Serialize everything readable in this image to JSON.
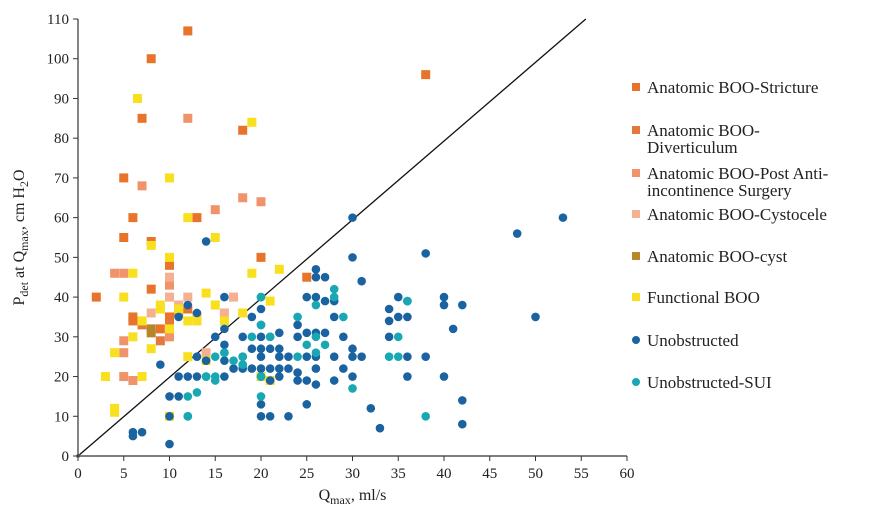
{
  "chart_data": {
    "type": "scatter",
    "title": "",
    "xlim": [
      0,
      60
    ],
    "ylim": [
      0,
      110
    ],
    "xticks": [
      0,
      5,
      10,
      15,
      20,
      25,
      30,
      35,
      40,
      45,
      50,
      55,
      60
    ],
    "yticks": [
      0,
      10,
      20,
      30,
      40,
      50,
      60,
      70,
      80,
      90,
      100,
      110
    ],
    "xlabel": {
      "main": "Q",
      "sub": "max",
      "rest": ", ml/s"
    },
    "ylabel": {
      "p": "P",
      "p_sub": "det",
      "mid": " at Q",
      "q_sub": "max",
      "mid2": ", cm H",
      "h2_sub": "2",
      "end": "O"
    },
    "grid": false,
    "legend_position": "right",
    "reference_line": {
      "x": [
        0,
        55.5
      ],
      "y": [
        0,
        110
      ]
    },
    "series": [
      {
        "name": [
          "Anatomic BOO-Stricture"
        ],
        "marker": "square",
        "color": "#E8732A",
        "points": [
          [
            12,
            107
          ],
          [
            8,
            100
          ],
          [
            38,
            96
          ],
          [
            7,
            85
          ],
          [
            18,
            82
          ],
          [
            5,
            70
          ],
          [
            13,
            60
          ],
          [
            20,
            50
          ],
          [
            10,
            48
          ],
          [
            25,
            45
          ],
          [
            2,
            40
          ],
          [
            6,
            35
          ],
          [
            6,
            34
          ],
          [
            9,
            32
          ],
          [
            11,
            36
          ],
          [
            12,
            37
          ],
          [
            13,
            35
          ],
          [
            10,
            35
          ],
          [
            8,
            42
          ],
          [
            6,
            60
          ],
          [
            8,
            54
          ],
          [
            5,
            55
          ]
        ]
      },
      {
        "name": [
          "Anatomic BOO-",
          "Diverticulum"
        ],
        "marker": "square",
        "color": "#E27A3F",
        "points": [
          [
            7,
            33
          ],
          [
            9,
            29
          ],
          [
            10,
            33
          ]
        ]
      },
      {
        "name": [
          "Anatomic BOO-Post Anti-",
          "incontinence Surgery"
        ],
        "marker": "square",
        "color": "#F0936A",
        "points": [
          [
            12,
            85
          ],
          [
            15,
            62
          ],
          [
            18,
            65
          ],
          [
            20,
            64
          ],
          [
            7,
            68
          ],
          [
            5,
            46
          ],
          [
            4,
            46
          ],
          [
            5,
            29
          ],
          [
            5,
            26
          ],
          [
            5,
            20
          ],
          [
            6,
            19
          ],
          [
            10,
            30
          ],
          [
            10,
            43
          ]
        ]
      },
      {
        "name": [
          "Anatomic BOO-Cystocele"
        ],
        "marker": "square",
        "color": "#F4B090",
        "points": [
          [
            12,
            40
          ],
          [
            11,
            38
          ],
          [
            10,
            45
          ],
          [
            13,
            35
          ],
          [
            17,
            40
          ],
          [
            16,
            36
          ],
          [
            14,
            26
          ],
          [
            10,
            40
          ],
          [
            8,
            36
          ]
        ]
      },
      {
        "name": [
          "Anatomic BOO-cyst"
        ],
        "marker": "square",
        "color": "#B8862A",
        "points": [
          [
            8,
            32
          ],
          [
            8,
            31
          ]
        ]
      },
      {
        "name": [
          "Functional BOO"
        ],
        "marker": "square",
        "color": "#F8E01E",
        "points": [
          [
            6.5,
            90
          ],
          [
            19,
            84
          ],
          [
            10,
            70
          ],
          [
            12,
            60
          ],
          [
            15,
            55
          ],
          [
            8,
            53
          ],
          [
            10,
            50
          ],
          [
            6,
            46
          ],
          [
            5,
            40
          ],
          [
            22,
            47
          ],
          [
            19,
            46
          ],
          [
            9,
            38
          ],
          [
            9,
            37
          ],
          [
            11,
            37
          ],
          [
            12,
            34
          ],
          [
            13,
            34
          ],
          [
            14,
            41
          ],
          [
            21,
            39
          ],
          [
            18,
            36
          ],
          [
            16,
            34
          ],
          [
            7,
            34
          ],
          [
            6,
            30
          ],
          [
            10,
            32
          ],
          [
            8,
            27
          ],
          [
            4,
            26
          ],
          [
            12,
            25
          ],
          [
            14,
            24
          ],
          [
            20,
            20
          ],
          [
            21,
            19
          ],
          [
            7,
            20
          ],
          [
            3,
            20
          ],
          [
            4,
            12
          ],
          [
            4,
            11
          ],
          [
            10,
            10
          ],
          [
            15,
            38
          ]
        ]
      },
      {
        "name": [
          "Unobstructed"
        ],
        "marker": "circle",
        "color": "#1B63A0",
        "points": [
          [
            30,
            60
          ],
          [
            53,
            60
          ],
          [
            48,
            56
          ],
          [
            38,
            51
          ],
          [
            30,
            50
          ],
          [
            26,
            47
          ],
          [
            26,
            45
          ],
          [
            27,
            45
          ],
          [
            31,
            44
          ],
          [
            20,
            40
          ],
          [
            25,
            40
          ],
          [
            26,
            40
          ],
          [
            27,
            39
          ],
          [
            28,
            39
          ],
          [
            35,
            40
          ],
          [
            36,
            39
          ],
          [
            40,
            40
          ],
          [
            40,
            38
          ],
          [
            42,
            38
          ],
          [
            34,
            37
          ],
          [
            35,
            35
          ],
          [
            36,
            35
          ],
          [
            50,
            35
          ],
          [
            41,
            32
          ],
          [
            16,
            40
          ],
          [
            14,
            54
          ],
          [
            12,
            38
          ],
          [
            16,
            32
          ],
          [
            20,
            37
          ],
          [
            19,
            35
          ],
          [
            18,
            30
          ],
          [
            20,
            30
          ],
          [
            21,
            30
          ],
          [
            22,
            31
          ],
          [
            24,
            30
          ],
          [
            25,
            31
          ],
          [
            26,
            31
          ],
          [
            27,
            31
          ],
          [
            29,
            30
          ],
          [
            30,
            27
          ],
          [
            31,
            25
          ],
          [
            34,
            30
          ],
          [
            36,
            25
          ],
          [
            38,
            25
          ],
          [
            34,
            34
          ],
          [
            16,
            28
          ],
          [
            19,
            27
          ],
          [
            20,
            27
          ],
          [
            21,
            27
          ],
          [
            22,
            27
          ],
          [
            18,
            25
          ],
          [
            20,
            25
          ],
          [
            22,
            25
          ],
          [
            23,
            25
          ],
          [
            25,
            25
          ],
          [
            26,
            25
          ],
          [
            28,
            25
          ],
          [
            30,
            25
          ],
          [
            29,
            22
          ],
          [
            26,
            22
          ],
          [
            24,
            21
          ],
          [
            22,
            20
          ],
          [
            20,
            20
          ],
          [
            21,
            19
          ],
          [
            18,
            22
          ],
          [
            16,
            24
          ],
          [
            14,
            24
          ],
          [
            13,
            25
          ],
          [
            12,
            20
          ],
          [
            11,
            20
          ],
          [
            13,
            20
          ],
          [
            14,
            20
          ],
          [
            16,
            20
          ],
          [
            17,
            22
          ],
          [
            18,
            23
          ],
          [
            19,
            22
          ],
          [
            20,
            22
          ],
          [
            21,
            22
          ],
          [
            22,
            22
          ],
          [
            23,
            22
          ],
          [
            24,
            19
          ],
          [
            25,
            19
          ],
          [
            26,
            18
          ],
          [
            28,
            19
          ],
          [
            30,
            20
          ],
          [
            40,
            20
          ],
          [
            36,
            20
          ],
          [
            9,
            23
          ],
          [
            10,
            15
          ],
          [
            10,
            10
          ],
          [
            10,
            3
          ],
          [
            6,
            6
          ],
          [
            6,
            5
          ],
          [
            7,
            6
          ],
          [
            12,
            10
          ],
          [
            11,
            15
          ],
          [
            20,
            10
          ],
          [
            20,
            13
          ],
          [
            21,
            10
          ],
          [
            23,
            10
          ],
          [
            25,
            13
          ],
          [
            32,
            12
          ],
          [
            33,
            7
          ],
          [
            42,
            14
          ],
          [
            42,
            8
          ],
          [
            11,
            35
          ],
          [
            13,
            36
          ],
          [
            15,
            30
          ],
          [
            16,
            26
          ],
          [
            20,
            33
          ],
          [
            24,
            33
          ],
          [
            28,
            35
          ]
        ]
      },
      {
        "name": [
          "Unobstructed-SUI"
        ],
        "marker": "circle",
        "color": "#18A8B4",
        "points": [
          [
            28,
            42
          ],
          [
            28,
            40
          ],
          [
            26,
            38
          ],
          [
            36,
            39
          ],
          [
            26,
            30
          ],
          [
            27,
            28
          ],
          [
            20,
            33
          ],
          [
            21,
            30
          ],
          [
            19,
            30
          ],
          [
            24,
            25
          ],
          [
            26,
            26
          ],
          [
            18,
            25
          ],
          [
            17,
            24
          ],
          [
            18,
            23
          ],
          [
            20,
            20
          ],
          [
            15,
            20
          ],
          [
            14,
            20
          ],
          [
            15,
            19
          ],
          [
            13,
            16
          ],
          [
            12,
            15
          ],
          [
            12,
            10
          ],
          [
            20,
            15
          ],
          [
            30,
            17
          ],
          [
            35,
            30
          ],
          [
            35,
            25
          ],
          [
            34,
            25
          ],
          [
            38,
            10
          ],
          [
            29,
            35
          ],
          [
            20,
            40
          ],
          [
            24,
            35
          ],
          [
            25,
            28
          ],
          [
            15,
            25
          ],
          [
            16,
            26
          ]
        ]
      }
    ]
  }
}
